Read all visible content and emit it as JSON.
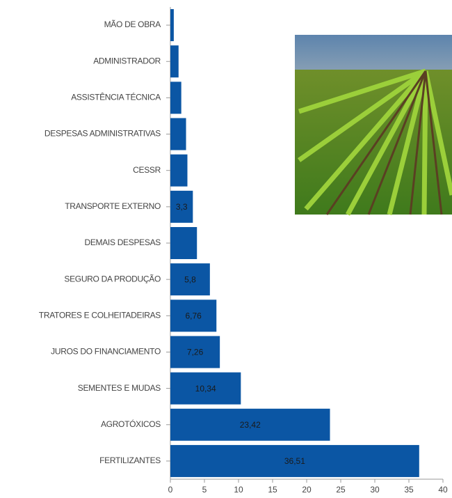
{
  "chart_data": {
    "type": "hbar",
    "categories": [
      "MÃO DE OBRA",
      "ADMINISTRADOR",
      "ASSISTÊNCIA TÉCNICA",
      "DESPESAS ADMINISTRATIVAS",
      "CESSR",
      "TRANSPORTE EXTERNO",
      "DEMAIS DESPESAS",
      "SEGURO DA PRODUÇÃO",
      "TRATORES E COLHEITADEIRAS",
      "JUROS DO FINANCIAMENTO",
      "SEMENTES E MUDAS",
      "AGROTÓXICOS",
      "FERTILIZANTES"
    ],
    "values": [
      0.5,
      1.2,
      1.6,
      2.3,
      2.5,
      3.3,
      3.9,
      5.8,
      6.76,
      7.26,
      10.34,
      23.42,
      36.51
    ],
    "value_labels": [
      null,
      null,
      null,
      null,
      null,
      "3,3",
      null,
      "5,8",
      "6,76",
      "7,26",
      "10,34",
      "23,42",
      "36,51"
    ],
    "color": "#0b56a4",
    "xlim": [
      0,
      40
    ],
    "xticks": [
      0,
      5,
      10,
      15,
      20,
      25,
      30,
      35,
      40
    ]
  }
}
